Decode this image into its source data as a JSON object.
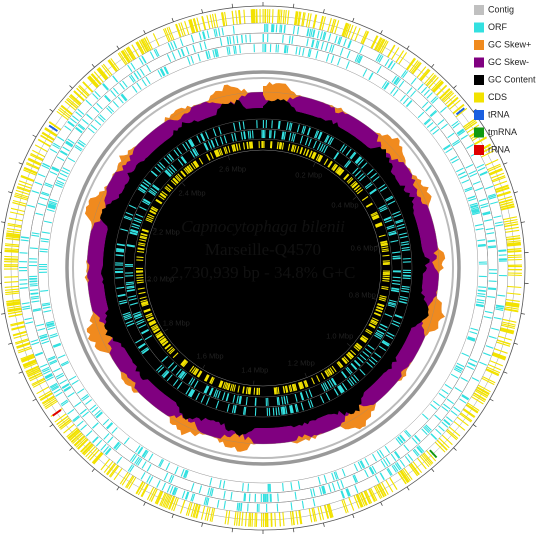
{
  "title": "Capnocytophaga bilenii",
  "strain": "Marseille-Q4570",
  "summary": "2,730,939 bp - 34.8% G+C",
  "scale_labels": [
    "0.2 Mbp",
    "0.4 Mbp",
    "0.6 Mbp",
    "0.8 Mbp",
    "1.0 Mbp",
    "1.2 Mbp",
    "1.4 Mbp",
    "1.6 Mbp",
    "1.8 Mbp",
    "2.0 Mbp",
    "2.2 Mbp",
    "2.4 Mbp",
    "2.6 Mbp"
  ],
  "legend": [
    {
      "label": "Contig",
      "color": "#c0c0c0"
    },
    {
      "label": "ORF",
      "color": "#33e0e0"
    },
    {
      "label": "GC Skew+",
      "color": "#f08a1e"
    },
    {
      "label": "GC Skew-",
      "color": "#800080"
    },
    {
      "label": "GC Content",
      "color": "#000000"
    },
    {
      "label": "CDS",
      "color": "#f2e200"
    },
    {
      "label": "tRNA",
      "color": "#1a5fe0"
    },
    {
      "label": "tmRNA",
      "color": "#119911"
    },
    {
      "label": "rRNA",
      "color": "#e00000"
    }
  ]
}
